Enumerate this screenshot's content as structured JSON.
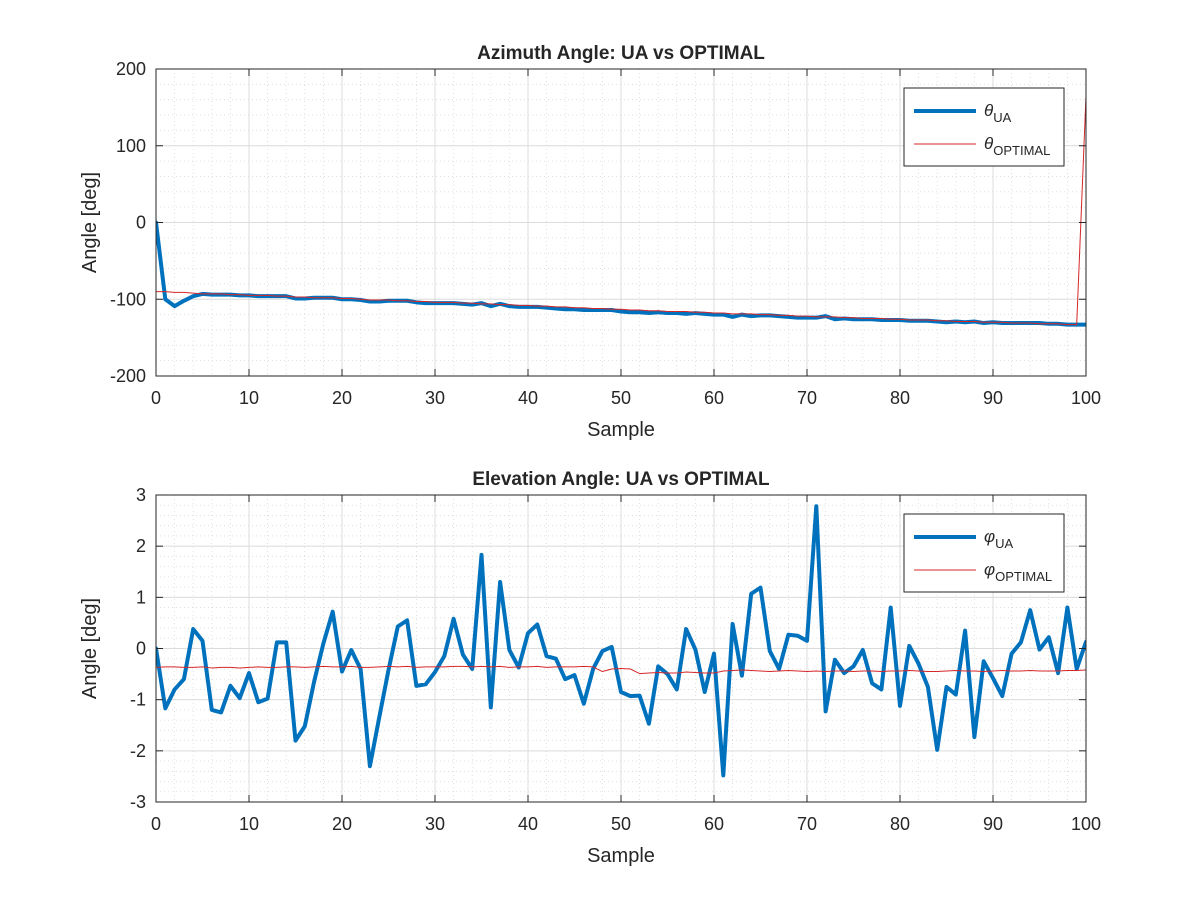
{
  "chart_data": [
    {
      "type": "line",
      "title": "Azimuth Angle: UA vs OPTIMAL",
      "xlabel": "Sample",
      "ylabel": "Angle [deg]",
      "xlim": [
        0,
        100
      ],
      "ylim": [
        -200,
        200
      ],
      "xticks": [
        "0",
        "10",
        "20",
        "30",
        "40",
        "50",
        "60",
        "70",
        "80",
        "90",
        "100"
      ],
      "yticks": [
        "-200",
        "-100",
        "0",
        "100",
        "200"
      ],
      "grid": true,
      "minor_grid": true,
      "legend_position": "top-right",
      "series": [
        {
          "name": "θUA",
          "legend_symbol": "θ",
          "legend_sub": "UA",
          "color": "#0072BD",
          "width": 4,
          "x": [
            0,
            1,
            2,
            3,
            4,
            5,
            6,
            7,
            8,
            9,
            10,
            11,
            12,
            13,
            14,
            15,
            16,
            17,
            18,
            19,
            20,
            21,
            22,
            23,
            24,
            25,
            26,
            27,
            28,
            29,
            30,
            31,
            32,
            33,
            34,
            35,
            36,
            37,
            38,
            39,
            40,
            41,
            42,
            43,
            44,
            45,
            46,
            47,
            48,
            49,
            50,
            51,
            52,
            53,
            54,
            55,
            56,
            57,
            58,
            59,
            60,
            61,
            62,
            63,
            64,
            65,
            66,
            67,
            68,
            69,
            70,
            71,
            72,
            73,
            74,
            75,
            76,
            77,
            78,
            79,
            80,
            81,
            82,
            83,
            84,
            85,
            86,
            87,
            88,
            89,
            90,
            91,
            92,
            93,
            94,
            95,
            96,
            97,
            98,
            99,
            100
          ],
          "y": [
            0,
            -100,
            -109,
            -102,
            -96,
            -93,
            -94,
            -94,
            -94,
            -95,
            -95,
            -96,
            -96,
            -96,
            -96,
            -99,
            -99,
            -98,
            -98,
            -98,
            -100,
            -100,
            -101,
            -103,
            -103,
            -102,
            -102,
            -102,
            -104,
            -105,
            -105,
            -105,
            -105,
            -106,
            -107,
            -105,
            -109,
            -106,
            -109,
            -110,
            -110,
            -110,
            -111,
            -112,
            -113,
            -113,
            -114,
            -114,
            -114,
            -114,
            -116,
            -117,
            -117,
            -118,
            -117,
            -118,
            -118,
            -119,
            -118,
            -119,
            -120,
            -120,
            -123,
            -120,
            -122,
            -121,
            -121,
            -122,
            -123,
            -124,
            -124,
            -124,
            -122,
            -126,
            -125,
            -126,
            -126,
            -126,
            -127,
            -127,
            -127,
            -128,
            -128,
            -128,
            -129,
            -130,
            -129,
            -130,
            -129,
            -131,
            -130,
            -131,
            -131,
            -131,
            -131,
            -131,
            -132,
            -132,
            -133,
            -133,
            -133
          ]
        },
        {
          "name": "θOPTIMAL",
          "legend_symbol": "θ",
          "legend_sub": "OPTIMAL",
          "color": "#D62728",
          "width": 1,
          "x": [
            0,
            1,
            2,
            3,
            4,
            5,
            6,
            7,
            8,
            9,
            10,
            11,
            12,
            13,
            14,
            15,
            16,
            17,
            18,
            19,
            20,
            21,
            22,
            23,
            24,
            25,
            26,
            27,
            28,
            29,
            30,
            31,
            32,
            33,
            34,
            35,
            36,
            37,
            38,
            39,
            40,
            41,
            42,
            43,
            44,
            45,
            46,
            47,
            48,
            49,
            50,
            51,
            52,
            53,
            54,
            55,
            56,
            57,
            58,
            59,
            60,
            61,
            62,
            63,
            64,
            65,
            66,
            67,
            68,
            69,
            70,
            71,
            72,
            73,
            74,
            75,
            76,
            77,
            78,
            79,
            80,
            81,
            82,
            83,
            84,
            85,
            86,
            87,
            88,
            89,
            90,
            91,
            92,
            93,
            94,
            95,
            96,
            97,
            98,
            99,
            100
          ],
          "y": [
            -90,
            -90,
            -91,
            -91,
            -92,
            -93,
            -93,
            -93,
            -94,
            -94,
            -95,
            -95,
            -95,
            -96,
            -96,
            -97,
            -97,
            -98,
            -98,
            -98,
            -99,
            -99,
            -100,
            -101,
            -101,
            -101,
            -102,
            -102,
            -103,
            -103,
            -104,
            -104,
            -104,
            -105,
            -105,
            -106,
            -106,
            -107,
            -107,
            -108,
            -108,
            -109,
            -109,
            -110,
            -110,
            -111,
            -111,
            -112,
            -112,
            -113,
            -113,
            -114,
            -114,
            -115,
            -115,
            -116,
            -116,
            -116,
            -117,
            -117,
            -118,
            -118,
            -119,
            -119,
            -119,
            -120,
            -120,
            -121,
            -121,
            -122,
            -122,
            -123,
            -123,
            -123,
            -124,
            -124,
            -125,
            -125,
            -125,
            -126,
            -126,
            -127,
            -127,
            -127,
            -128,
            -128,
            -129,
            -129,
            -129,
            -130,
            -130,
            -130,
            -131,
            -131,
            -131,
            -132,
            -132,
            -132,
            -133,
            -133,
            165
          ]
        }
      ]
    },
    {
      "type": "line",
      "title": "Elevation Angle: UA vs OPTIMAL",
      "xlabel": "Sample",
      "ylabel": "Angle [deg]",
      "xlim": [
        0,
        100
      ],
      "ylim": [
        -3,
        3
      ],
      "xticks": [
        "0",
        "10",
        "20",
        "30",
        "40",
        "50",
        "60",
        "70",
        "80",
        "90",
        "100"
      ],
      "yticks": [
        "-3",
        "-2",
        "-1",
        "0",
        "1",
        "2",
        "3"
      ],
      "grid": true,
      "minor_grid": true,
      "legend_position": "top-right",
      "series": [
        {
          "name": "φUA",
          "legend_symbol": "φ",
          "legend_sub": "UA",
          "color": "#0072BD",
          "width": 4,
          "x": [
            0,
            1,
            2,
            3,
            4,
            5,
            6,
            7,
            8,
            9,
            10,
            11,
            12,
            13,
            14,
            15,
            16,
            17,
            18,
            19,
            20,
            21,
            22,
            23,
            24,
            25,
            26,
            27,
            28,
            29,
            30,
            31,
            32,
            33,
            34,
            35,
            36,
            37,
            38,
            39,
            40,
            41,
            42,
            43,
            44,
            45,
            46,
            47,
            48,
            49,
            50,
            51,
            52,
            53,
            54,
            55,
            56,
            57,
            58,
            59,
            60,
            61,
            62,
            63,
            64,
            65,
            66,
            67,
            68,
            69,
            70,
            71,
            72,
            73,
            74,
            75,
            76,
            77,
            78,
            79,
            80,
            81,
            82,
            83,
            84,
            85,
            86,
            87,
            88,
            89,
            90,
            91,
            92,
            93,
            94,
            95,
            96,
            97,
            98,
            99,
            100
          ],
          "y": [
            0,
            -1.17,
            -0.8,
            -0.6,
            0.38,
            0.15,
            -1.2,
            -1.25,
            -0.73,
            -0.97,
            -0.48,
            -1.05,
            -0.98,
            0.12,
            0.12,
            -1.8,
            -1.52,
            -0.65,
            0.1,
            0.72,
            -0.45,
            -0.03,
            -0.4,
            -2.3,
            -1.35,
            -0.42,
            0.43,
            0.55,
            -0.73,
            -0.7,
            -0.46,
            -0.15,
            0.58,
            -0.12,
            -0.4,
            1.83,
            -1.15,
            1.3,
            -0.03,
            -0.37,
            0.3,
            0.47,
            -0.15,
            -0.2,
            -0.6,
            -0.52,
            -1.08,
            -0.4,
            -0.05,
            0.03,
            -0.85,
            -0.93,
            -0.92,
            -1.47,
            -0.35,
            -0.5,
            -0.8,
            0.38,
            -0.02,
            -0.85,
            -0.1,
            -2.48,
            0.48,
            -0.53,
            1.07,
            1.19,
            -0.05,
            -0.4,
            0.27,
            0.25,
            0.15,
            2.78,
            -1.23,
            -0.22,
            -0.48,
            -0.35,
            -0.03,
            -0.68,
            -0.8,
            0.8,
            -1.12,
            0.05,
            -0.3,
            -0.75,
            -1.98,
            -0.75,
            -0.9,
            0.35,
            -1.73,
            -0.25,
            -0.58,
            -0.93,
            -0.1,
            0.12,
            0.75,
            -0.02,
            0.22,
            -0.48,
            0.8,
            -0.4,
            0.13
          ]
        },
        {
          "name": "φOPTIMAL",
          "legend_symbol": "φ",
          "legend_sub": "OPTIMAL",
          "color": "#D62728",
          "width": 1,
          "x": [
            0,
            1,
            2,
            3,
            4,
            5,
            6,
            7,
            8,
            9,
            10,
            11,
            12,
            13,
            14,
            15,
            16,
            17,
            18,
            19,
            20,
            21,
            22,
            23,
            24,
            25,
            26,
            27,
            28,
            29,
            30,
            31,
            32,
            33,
            34,
            35,
            36,
            37,
            38,
            39,
            40,
            41,
            42,
            43,
            44,
            45,
            46,
            47,
            48,
            49,
            50,
            51,
            52,
            53,
            54,
            55,
            56,
            57,
            58,
            59,
            60,
            61,
            62,
            63,
            64,
            65,
            66,
            67,
            68,
            69,
            70,
            71,
            72,
            73,
            74,
            75,
            76,
            77,
            78,
            79,
            80,
            81,
            82,
            83,
            84,
            85,
            86,
            87,
            88,
            89,
            90,
            91,
            92,
            93,
            94,
            95,
            96,
            97,
            98,
            99,
            100
          ],
          "y": [
            -0.37,
            -0.36,
            -0.36,
            -0.37,
            -0.37,
            -0.36,
            -0.38,
            -0.37,
            -0.37,
            -0.38,
            -0.37,
            -0.36,
            -0.37,
            -0.37,
            -0.36,
            -0.36,
            -0.37,
            -0.36,
            -0.35,
            -0.36,
            -0.36,
            -0.35,
            -0.37,
            -0.37,
            -0.36,
            -0.35,
            -0.36,
            -0.35,
            -0.37,
            -0.36,
            -0.36,
            -0.36,
            -0.35,
            -0.35,
            -0.36,
            -0.35,
            -0.36,
            -0.35,
            -0.37,
            -0.36,
            -0.36,
            -0.35,
            -0.37,
            -0.36,
            -0.36,
            -0.36,
            -0.35,
            -0.36,
            -0.45,
            -0.4,
            -0.39,
            -0.4,
            -0.49,
            -0.48,
            -0.47,
            -0.48,
            -0.48,
            -0.46,
            -0.47,
            -0.48,
            -0.48,
            -0.44,
            -0.43,
            -0.42,
            -0.43,
            -0.44,
            -0.45,
            -0.44,
            -0.43,
            -0.44,
            -0.45,
            -0.44,
            -0.45,
            -0.44,
            -0.44,
            -0.45,
            -0.44,
            -0.44,
            -0.45,
            -0.44,
            -0.44,
            -0.43,
            -0.44,
            -0.45,
            -0.45,
            -0.44,
            -0.43,
            -0.44,
            -0.44,
            -0.45,
            -0.44,
            -0.43,
            -0.44,
            -0.44,
            -0.43,
            -0.44,
            -0.44,
            -0.44,
            -0.43,
            -0.43,
            -0.42
          ]
        }
      ]
    }
  ]
}
